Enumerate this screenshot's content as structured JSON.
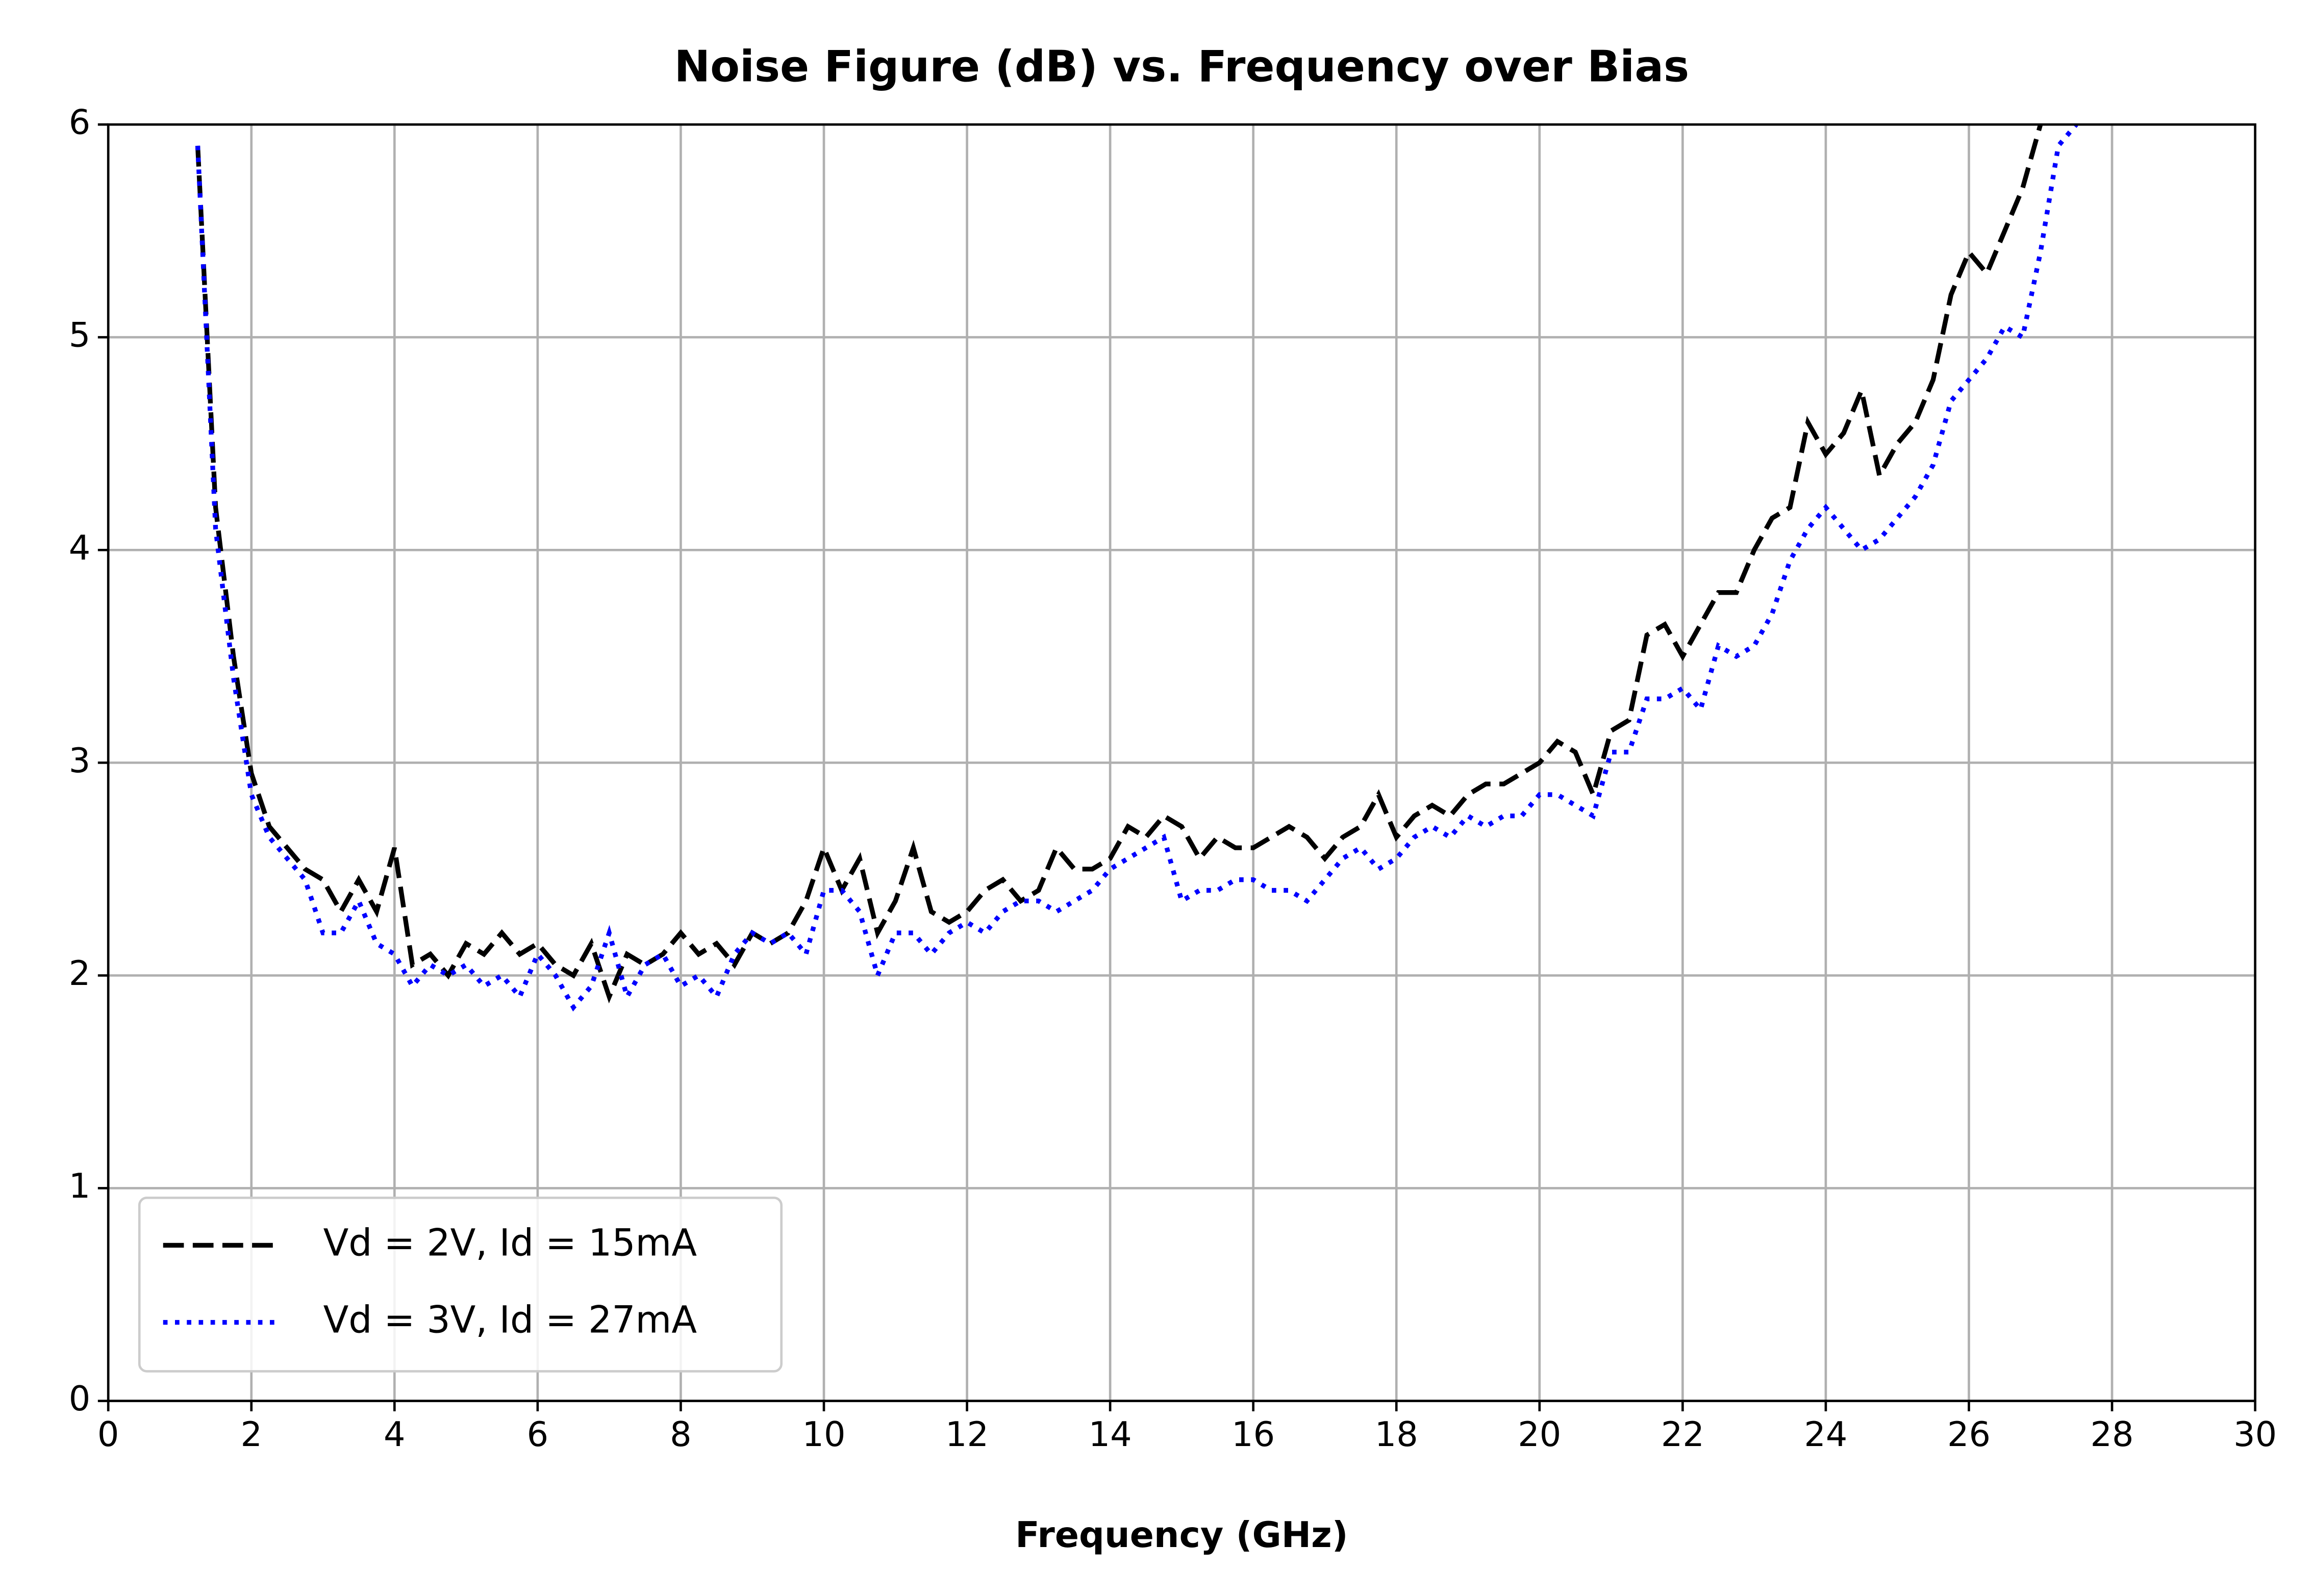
{
  "chart_data": {
    "type": "line",
    "title": "Noise Figure (dB) vs. Frequency over Bias",
    "x_label": "Frequency (GHz)",
    "x": [
      1.25,
      1.5,
      1.75,
      2,
      2.25,
      2.5,
      2.75,
      3,
      3.25,
      3.5,
      3.75,
      4,
      4.25,
      4.5,
      4.75,
      5,
      5.25,
      5.5,
      5.75,
      6,
      6.25,
      6.5,
      6.75,
      7,
      7.25,
      7.5,
      7.75,
      8,
      8.25,
      8.5,
      8.75,
      9,
      9.25,
      9.5,
      9.75,
      10,
      10.25,
      10.5,
      10.75,
      11,
      11.25,
      11.5,
      11.75,
      12,
      12.25,
      12.5,
      12.75,
      13,
      13.25,
      13.5,
      13.75,
      14,
      14.25,
      14.5,
      14.75,
      15,
      15.25,
      15.5,
      15.75,
      16,
      16.25,
      16.5,
      16.75,
      17,
      17.25,
      17.5,
      17.75,
      18,
      18.25,
      18.5,
      18.75,
      19,
      19.25,
      19.5,
      19.75,
      20,
      20.25,
      20.5,
      20.75,
      21,
      21.25,
      21.5,
      21.75,
      22,
      22.25,
      22.5,
      22.75,
      23,
      23.25,
      23.5,
      23.75,
      24,
      24.25,
      24.5,
      24.75,
      25,
      25.25,
      25.5,
      25.75,
      26,
      26.25,
      26.5,
      26.75,
      27,
      27.25,
      27.5
    ],
    "series": [
      {
        "name": "Vd = 2V, Id = 15mA",
        "color": "#000000",
        "style": "dashed",
        "values": [
          5.9,
          4.2,
          3.5,
          2.95,
          2.7,
          2.6,
          2.5,
          2.45,
          2.3,
          2.45,
          2.3,
          2.6,
          2.05,
          2.1,
          2.0,
          2.15,
          2.1,
          2.2,
          2.1,
          2.15,
          2.05,
          2.0,
          2.15,
          1.9,
          2.1,
          2.05,
          2.1,
          2.2,
          2.1,
          2.15,
          2.05,
          2.2,
          2.15,
          2.2,
          2.35,
          2.6,
          2.4,
          2.55,
          2.2,
          2.35,
          2.6,
          2.3,
          2.25,
          2.3,
          2.4,
          2.45,
          2.35,
          2.4,
          2.6,
          2.5,
          2.5,
          2.55,
          2.7,
          2.65,
          2.75,
          2.7,
          2.55,
          2.65,
          2.6,
          2.6,
          2.65,
          2.7,
          2.65,
          2.55,
          2.65,
          2.7,
          2.85,
          2.65,
          2.75,
          2.8,
          2.75,
          2.85,
          2.9,
          2.9,
          2.95,
          3.0,
          3.1,
          3.05,
          2.85,
          3.15,
          3.2,
          3.6,
          3.65,
          3.5,
          3.65,
          3.8,
          3.8,
          4.0,
          4.15,
          4.2,
          4.6,
          4.45,
          4.55,
          4.75,
          4.35,
          4.5,
          4.6,
          4.8,
          5.2,
          5.4,
          5.3,
          5.5,
          5.7,
          6.0,
          null,
          null
        ]
      },
      {
        "name": "Vd = 3V, Id = 27mA",
        "color": "#0000ff",
        "style": "dotted",
        "values": [
          5.9,
          4.1,
          3.4,
          2.85,
          2.65,
          2.55,
          2.45,
          2.2,
          2.2,
          2.35,
          2.15,
          2.1,
          1.95,
          2.05,
          2.0,
          2.05,
          1.95,
          2.0,
          1.9,
          2.1,
          2.0,
          1.85,
          1.95,
          2.2,
          1.9,
          2.05,
          2.1,
          1.95,
          2.0,
          1.9,
          2.1,
          2.2,
          2.15,
          2.2,
          2.1,
          2.4,
          2.4,
          2.3,
          2.0,
          2.2,
          2.2,
          2.1,
          2.2,
          2.25,
          2.2,
          2.3,
          2.35,
          2.35,
          2.3,
          2.35,
          2.4,
          2.5,
          2.55,
          2.6,
          2.65,
          2.35,
          2.4,
          2.4,
          2.45,
          2.45,
          2.4,
          2.4,
          2.35,
          2.45,
          2.55,
          2.6,
          2.5,
          2.55,
          2.65,
          2.7,
          2.65,
          2.75,
          2.7,
          2.75,
          2.75,
          2.85,
          2.85,
          2.8,
          2.75,
          3.05,
          3.05,
          3.3,
          3.3,
          3.35,
          3.25,
          3.55,
          3.5,
          3.55,
          3.7,
          3.95,
          4.1,
          4.2,
          4.1,
          4.0,
          4.05,
          4.15,
          4.25,
          4.4,
          4.7,
          4.8,
          4.9,
          5.05,
          5.0,
          5.4,
          5.9,
          6.0
        ]
      }
    ],
    "xlim": [
      0,
      30
    ],
    "ylim": [
      0,
      6
    ],
    "xticks": [
      0,
      2,
      4,
      6,
      8,
      10,
      12,
      14,
      16,
      18,
      20,
      22,
      24,
      26,
      28,
      30
    ],
    "yticks": [
      0,
      1,
      2,
      3,
      4,
      5,
      6
    ],
    "grid": true,
    "legend": "lower left"
  }
}
